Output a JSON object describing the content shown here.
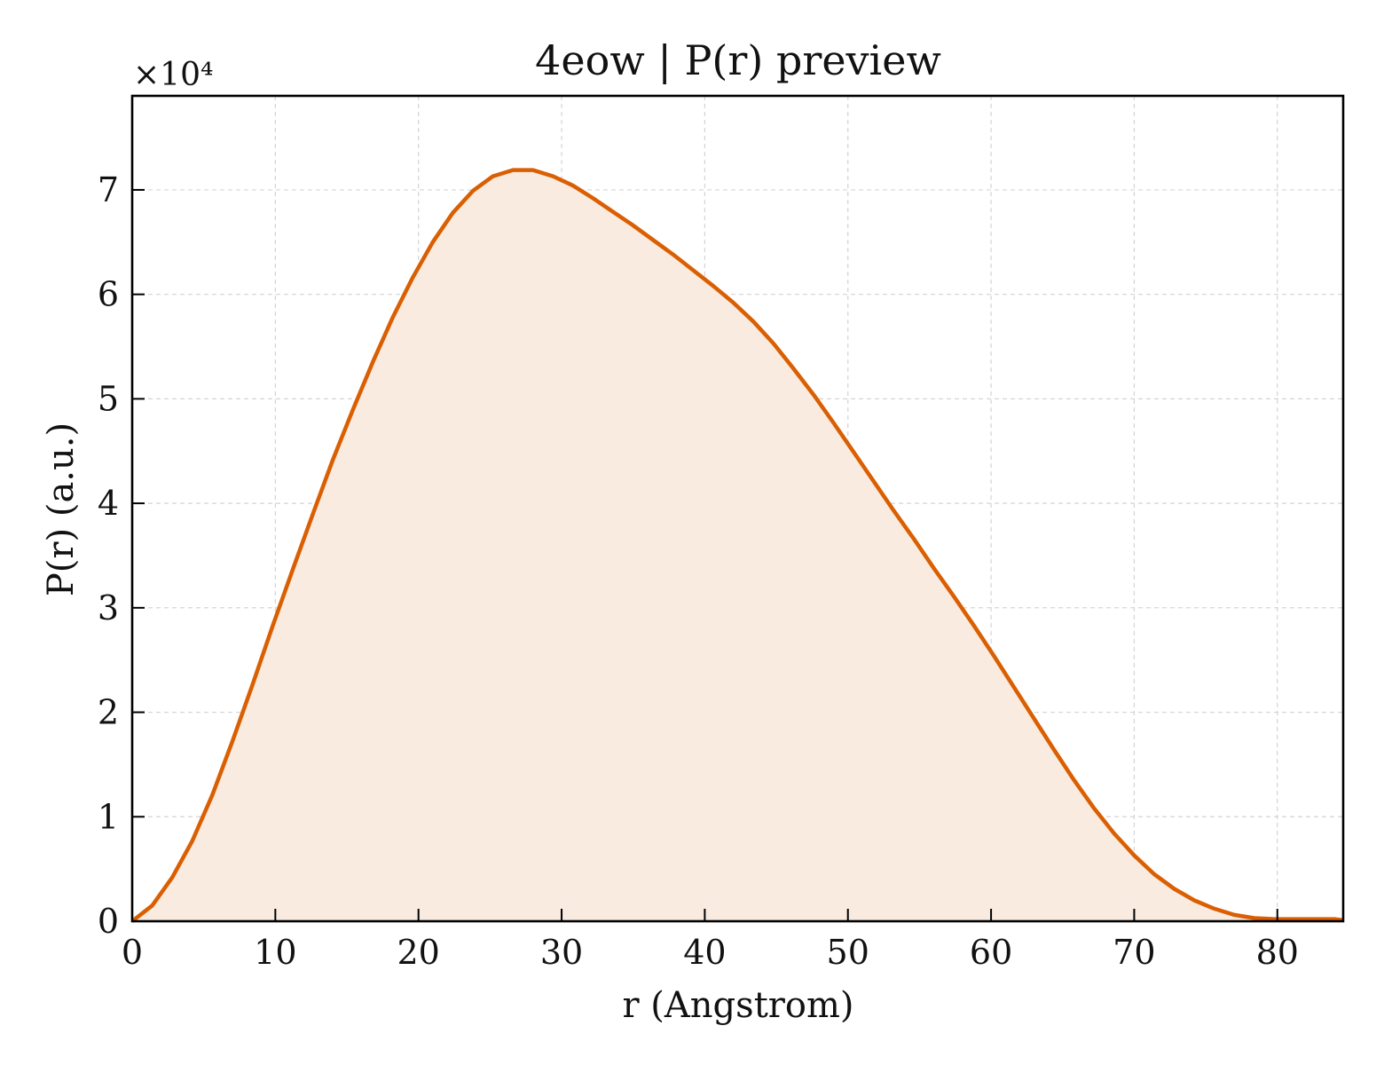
{
  "chart_data": {
    "type": "area",
    "title": "4eow | P(r) preview",
    "xlabel": "r (Angstrom)",
    "ylabel": "P(r) (a.u.)",
    "y_multiplier_label": "×10⁴",
    "xlim": [
      0,
      84.6
    ],
    "ylim": [
      0,
      7.9
    ],
    "xticks": [
      0,
      10,
      20,
      30,
      40,
      50,
      60,
      70,
      80
    ],
    "yticks": [
      0,
      1,
      2,
      3,
      4,
      5,
      6,
      7
    ],
    "grid": true,
    "line_color": "#d95f02",
    "fill_color": "#f9ebe0",
    "series": [
      {
        "x": [
          0,
          1.4,
          2.8,
          4.2,
          5.6,
          7.0,
          8.4,
          9.8,
          11.2,
          12.6,
          14.0,
          15.4,
          16.8,
          18.2,
          19.6,
          21.0,
          22.4,
          23.8,
          25.2,
          26.6,
          28.0,
          29.4,
          30.8,
          32.2,
          33.6,
          35.0,
          36.4,
          37.8,
          39.2,
          40.6,
          42.0,
          43.4,
          44.8,
          46.2,
          47.6,
          49.0,
          50.4,
          51.8,
          53.2,
          54.6,
          56.0,
          57.4,
          58.8,
          60.2,
          61.6,
          63.0,
          64.4,
          65.8,
          67.2,
          68.6,
          70.0,
          71.4,
          72.8,
          74.2,
          75.6,
          77.0,
          78.4,
          79.8,
          81.2,
          82.6,
          84.0,
          84.6
        ],
        "y": [
          0,
          0.15,
          0.42,
          0.77,
          1.21,
          1.72,
          2.26,
          2.82,
          3.36,
          3.89,
          4.41,
          4.89,
          5.35,
          5.78,
          6.16,
          6.5,
          6.78,
          6.99,
          7.13,
          7.19,
          7.19,
          7.13,
          7.04,
          6.92,
          6.79,
          6.66,
          6.52,
          6.38,
          6.23,
          6.08,
          5.92,
          5.74,
          5.53,
          5.29,
          5.04,
          4.77,
          4.49,
          4.21,
          3.93,
          3.66,
          3.38,
          3.11,
          2.83,
          2.54,
          2.24,
          1.94,
          1.64,
          1.35,
          1.08,
          0.84,
          0.63,
          0.45,
          0.31,
          0.2,
          0.12,
          0.06,
          0.03,
          0.02,
          0.02,
          0.02,
          0.02,
          0.01
        ]
      }
    ]
  }
}
